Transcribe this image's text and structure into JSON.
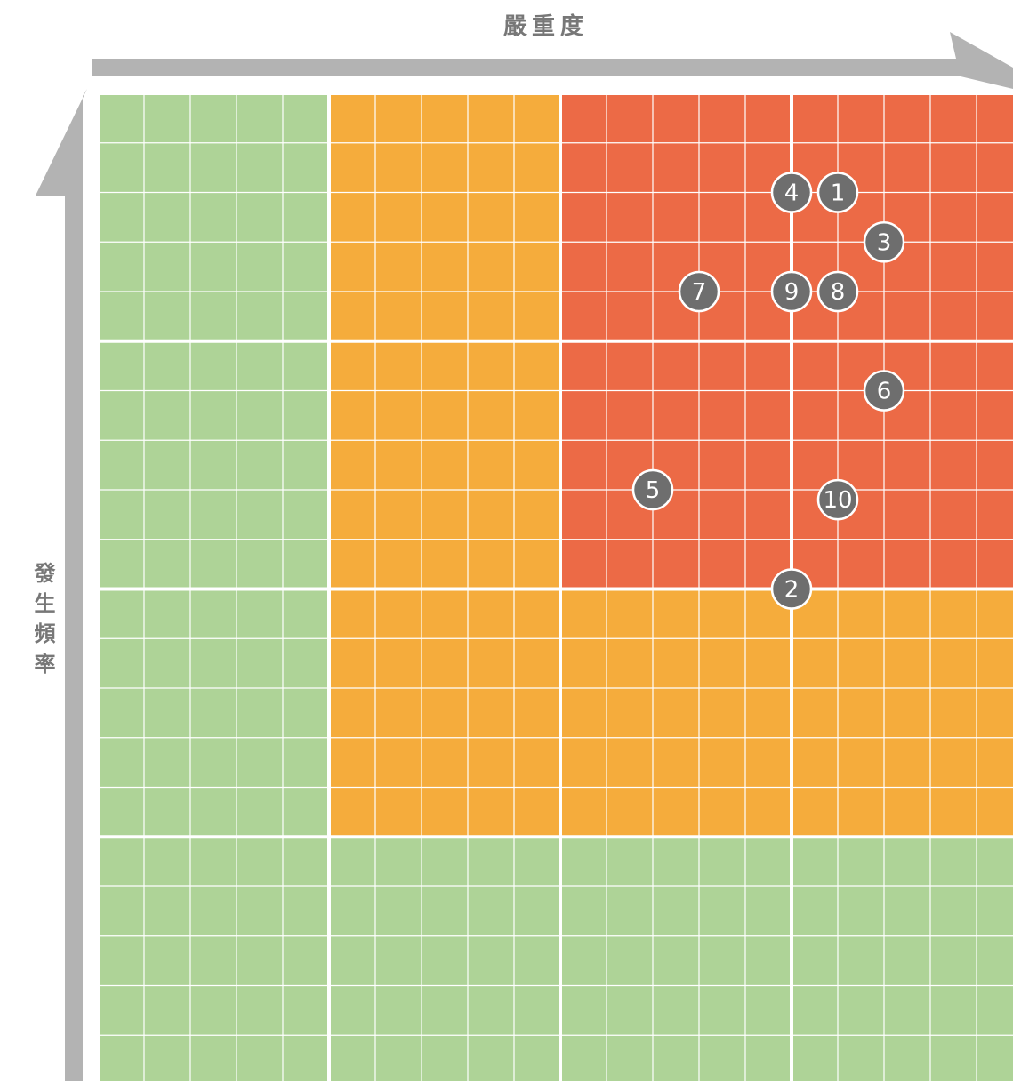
{
  "chart_data": {
    "type": "scatter",
    "xlabel": "嚴重度",
    "ylabel": "發生頻率",
    "labels": [
      "1",
      "2",
      "3",
      "4",
      "5",
      "6",
      "7",
      "8",
      "9",
      "10"
    ],
    "x": [
      16,
      15,
      17,
      15,
      12,
      17,
      13,
      16,
      15,
      16
    ],
    "y": [
      18,
      10,
      17,
      18,
      12,
      14,
      16,
      16,
      16,
      11.8
    ],
    "xlim": [
      0,
      20
    ],
    "ylim": [
      0,
      20
    ],
    "point_color": "#6e6e6e",
    "zones": [
      [
        "#aed397",
        "#f5ac3c",
        "#ec6a46",
        "#ec6a46"
      ],
      [
        "#aed397",
        "#f5ac3c",
        "#ec6a46",
        "#ec6a46"
      ],
      [
        "#aed397",
        "#f5ac3c",
        "#f5ac3c",
        "#f5ac3c"
      ],
      [
        "#aed397",
        "#aed397",
        "#aed397",
        "#aed397"
      ]
    ]
  }
}
